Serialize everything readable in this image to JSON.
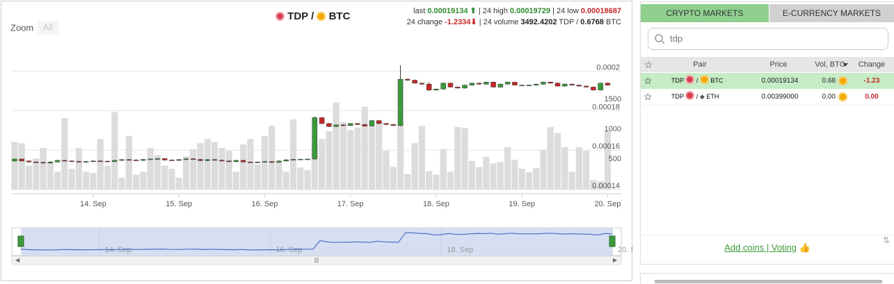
{
  "header": {
    "base": "TDP",
    "separator": "/",
    "quote": "BTC"
  },
  "stats": {
    "last_label": "last",
    "last": "0.00019134",
    "high_label": "| 24 high",
    "high": "0.00019729",
    "low_label": "| 24 low",
    "low": "0.00018687",
    "change_label": "24 change",
    "change": "-1.2334",
    "volume_label": "| 24 volume",
    "volume": "3492.4202",
    "volume_unit": "TDP /",
    "volume_btc": "0.6768",
    "volume_btc_unit": "BTC"
  },
  "zoom": {
    "label": "Zoom",
    "buttons": [
      "All"
    ]
  },
  "chart_data": {
    "type": "candlestick",
    "categories": [
      null,
      null,
      null,
      null,
      null,
      null,
      null,
      null,
      null,
      null,
      null,
      "14. Sep",
      null,
      null,
      null,
      null,
      null,
      null,
      null,
      null,
      null,
      null,
      null,
      "15. Sep",
      null,
      null,
      null,
      null,
      null,
      null,
      null,
      null,
      null,
      null,
      null,
      "16. Sep",
      null,
      null,
      null,
      null,
      null,
      null,
      null,
      null,
      null,
      null,
      null,
      "17. Sep",
      null,
      null,
      null,
      null,
      null,
      null,
      null,
      null,
      null,
      null,
      null,
      "18. Sep",
      null,
      null,
      null,
      null,
      null,
      null,
      null,
      null,
      null,
      null,
      null,
      "19. Sep",
      null,
      null,
      null,
      null,
      null,
      null,
      null,
      null,
      null,
      null,
      null,
      "20. Sep"
    ],
    "open": [
      0.0001545,
      0.0001555,
      0.0001545,
      0.000154,
      0.0001538,
      0.0001535,
      0.000154,
      0.0001548,
      0.0001545,
      0.0001543,
      0.000154,
      0.0001542,
      0.0001545,
      0.0001544,
      0.0001542,
      0.0001548,
      0.0001552,
      0.000155,
      0.0001548,
      0.0001553,
      0.0001555,
      0.0001557,
      0.000155,
      0.0001548,
      0.0001552,
      0.0001556,
      0.0001553,
      0.0001547,
      0.0001552,
      0.0001549,
      0.0001545,
      0.0001542,
      0.0001548,
      0.000154,
      0.0001538,
      0.000154,
      0.0001542,
      0.0001538,
      0.0001545,
      0.0001551,
      0.0001553,
      0.0001554,
      0.0001555,
      0.0001765,
      0.0001735,
      0.000172,
      0.0001728,
      0.0001725,
      0.0001735,
      0.000173,
      0.0001722,
      0.000175,
      0.0001735,
      0.000173,
      0.0001725,
      0.000196,
      0.0001955,
      0.000194,
      0.0001935,
      0.0001905,
      0.000191,
      0.000194,
      0.000192,
      0.0001915,
      0.000193,
      0.000194,
      0.0001935,
      0.0001945,
      0.000192,
      0.0001935,
      0.0001945,
      0.000193,
      0.000193,
      0.000193,
      0.0001935,
      0.0001945,
      0.000194,
      0.0001925,
      0.0001935,
      0.000193,
      0.0001925,
      0.000192,
      0.0001905,
      0.000194
    ],
    "high": [
      0.0001558,
      0.0001558,
      0.0001548,
      0.0001543,
      0.0001541,
      0.0001543,
      0.0001551,
      0.0001551,
      0.0001548,
      0.0001546,
      0.0001545,
      0.0001548,
      0.0001548,
      0.0001547,
      0.0001551,
      0.0001555,
      0.0001555,
      0.0001553,
      0.0001556,
      0.0001558,
      0.000156,
      0.000156,
      0.0001553,
      0.0001555,
      0.0001559,
      0.0001559,
      0.0001556,
      0.0001555,
      0.0001555,
      0.0001552,
      0.0001548,
      0.0001551,
      0.0001551,
      0.0001543,
      0.0001543,
      0.0001545,
      0.0001545,
      0.0001548,
      0.0001554,
      0.0001556,
      0.0001557,
      0.0001558,
      0.000177,
      0.0001768,
      0.0001738,
      0.0001731,
      0.0001731,
      0.0001738,
      0.0001738,
      0.0001733,
      0.0001753,
      0.0001753,
      0.0001738,
      0.0001733,
      0.000203,
      0.0001963,
      0.0001958,
      0.0001943,
      0.0001945,
      0.0001913,
      0.0001943,
      0.0001943,
      0.0001923,
      0.0001933,
      0.0001943,
      0.0001943,
      0.0001948,
      0.0001948,
      0.0001938,
      0.0001948,
      0.0001948,
      0.0001933,
      0.0001933,
      0.0001938,
      0.0001948,
      0.0001948,
      0.0001943,
      0.0001938,
      0.0001938,
      0.0001933,
      0.0001928,
      0.0001923,
      0.0001943,
      0.0001943
    ],
    "low": [
      0.0001542,
      0.0001542,
      0.0001537,
      0.0001535,
      0.0001532,
      0.0001532,
      0.0001537,
      0.0001542,
      0.000154,
      0.0001537,
      0.0001537,
      0.0001539,
      0.0001541,
      0.0001539,
      0.0001539,
      0.0001545,
      0.0001547,
      0.0001545,
      0.0001545,
      0.000155,
      0.0001552,
      0.0001547,
      0.0001545,
      0.0001545,
      0.0001549,
      0.000155,
      0.0001544,
      0.0001544,
      0.0001546,
      0.0001542,
      0.0001539,
      0.0001539,
      0.0001537,
      0.0001535,
      0.0001535,
      0.0001537,
      0.0001535,
      0.0001535,
      0.0001542,
      0.0001548,
      0.000155,
      0.0001551,
      0.0001552,
      0.0001732,
      0.0001717,
      0.0001717,
      0.0001722,
      0.0001722,
      0.0001727,
      0.0001719,
      0.0001719,
      0.0001732,
      0.0001727,
      0.0001722,
      0.000172,
      0.0001952,
      0.0001937,
      0.0001932,
      0.00019,
      0.0001902,
      0.0001907,
      0.0001917,
      0.0001912,
      0.0001912,
      0.0001927,
      0.0001932,
      0.0001932,
      0.0001917,
      0.0001917,
      0.0001932,
      0.0001927,
      0.0001927,
      0.0001927,
      0.0001927,
      0.0001932,
      0.0001937,
      0.0001922,
      0.0001922,
      0.0001927,
      0.0001922,
      0.0001917,
      0.0001902,
      0.0001902,
      0.0001927
    ],
    "close": [
      0.0001555,
      0.0001545,
      0.000154,
      0.0001538,
      0.0001535,
      0.000154,
      0.0001548,
      0.0001545,
      0.0001543,
      0.000154,
      0.0001542,
      0.0001545,
      0.0001544,
      0.0001542,
      0.0001548,
      0.0001552,
      0.000155,
      0.0001548,
      0.0001553,
      0.0001555,
      0.0001557,
      0.000155,
      0.0001548,
      0.0001552,
      0.0001556,
      0.0001553,
      0.0001547,
      0.0001552,
      0.0001549,
      0.0001545,
      0.0001542,
      0.0001548,
      0.000154,
      0.0001538,
      0.000154,
      0.0001542,
      0.0001538,
      0.0001545,
      0.0001551,
      0.0001553,
      0.0001554,
      0.0001555,
      0.0001765,
      0.0001735,
      0.000172,
      0.0001728,
      0.0001725,
      0.0001735,
      0.000173,
      0.0001722,
      0.000175,
      0.0001735,
      0.000173,
      0.0001725,
      0.000196,
      0.0001955,
      0.000194,
      0.0001935,
      0.0001905,
      0.000191,
      0.000194,
      0.000192,
      0.0001915,
      0.000193,
      0.000194,
      0.0001935,
      0.0001945,
      0.000192,
      0.0001935,
      0.0001945,
      0.000193,
      0.000193,
      0.000193,
      0.0001935,
      0.0001945,
      0.000194,
      0.0001925,
      0.0001935,
      0.000193,
      0.0001925,
      0.000192,
      0.0001905,
      0.000194,
      0.000193
    ],
    "volume": [
      800,
      780,
      400,
      520,
      700,
      450,
      300,
      1200,
      350,
      700,
      300,
      280,
      850,
      400,
      1300,
      200,
      900,
      250,
      300,
      700,
      580,
      400,
      350,
      200,
      560,
      680,
      780,
      850,
      800,
      700,
      650,
      300,
      760,
      850,
      420,
      900,
      1070,
      450,
      300,
      1180,
      370,
      330,
      750,
      850,
      980,
      1460,
      1130,
      1000,
      1040,
      1390,
      1050,
      1130,
      650,
      380,
      1090,
      260,
      780,
      1070,
      310,
      250,
      680,
      300,
      1050,
      1030,
      480,
      380,
      550,
      440,
      460,
      710,
      500,
      350,
      290,
      360,
      670,
      1050,
      950,
      710,
      300,
      710,
      650,
      160,
      140,
      980
    ],
    "up_color": "#3c9a3c",
    "down_color": "#c62828",
    "volume_color": "#dcdcdc",
    "line_color": "#4a6fc4",
    "ylim": [
      0.00014,
      0.000208
    ],
    "yticks": [
      0.00014,
      0.00016,
      0.00018,
      0.0002
    ],
    "y2lim": [
      0,
      2250
    ],
    "y2ticks": [
      500,
      1000,
      1500
    ],
    "grid": true
  },
  "markets": {
    "tabs": [
      "CRYPTO MARKETS",
      "E-CURRENCY MARKETS"
    ],
    "search": "tdp",
    "columns": [
      "Pair",
      "Price",
      "Vol, BTC",
      "Change"
    ],
    "rows": [
      {
        "base": "TDP",
        "separator": "/",
        "quote": "BTC",
        "price": "0.00019134",
        "volume": "0.68",
        "change": "-1.23"
      },
      {
        "base": "TDP",
        "separator": "/",
        "quote": "ETH",
        "price": "0.00399000",
        "volume": "0.00",
        "change": "0.00"
      }
    ],
    "footer": "Add coins | Voting"
  }
}
